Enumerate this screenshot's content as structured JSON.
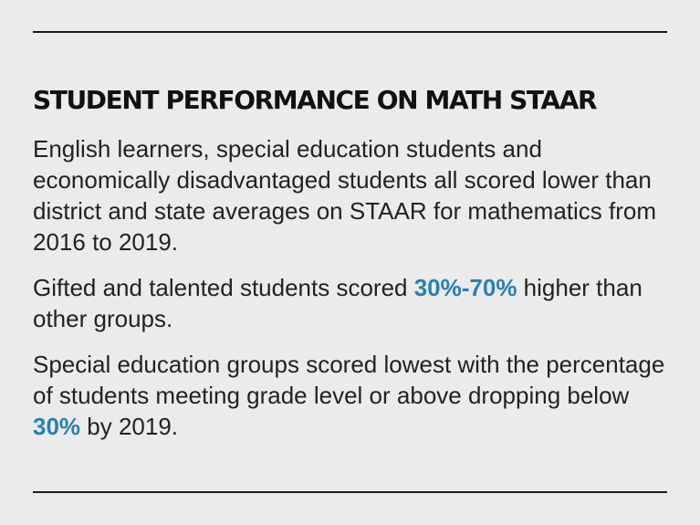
{
  "title": "STUDENT PERFORMANCE ON MATH STAAR",
  "paragraph1": "English learners, special education students and economically disadvantaged students all scored lower than district and state averages on STAAR for mathematics from 2016 to 2019.",
  "paragraph2": {
    "before": "Gifted and talented students scored ",
    "highlight": "30%-70%",
    "after": " higher than other groups."
  },
  "paragraph3": {
    "before": "Special education groups scored lowest with the percentage of students meeting grade level or above dropping below ",
    "highlight": "30%",
    "after": " by 2019."
  },
  "colors": {
    "background": "#ebebeb",
    "text": "#1b1b1b",
    "highlight": "#2b7fb3"
  }
}
